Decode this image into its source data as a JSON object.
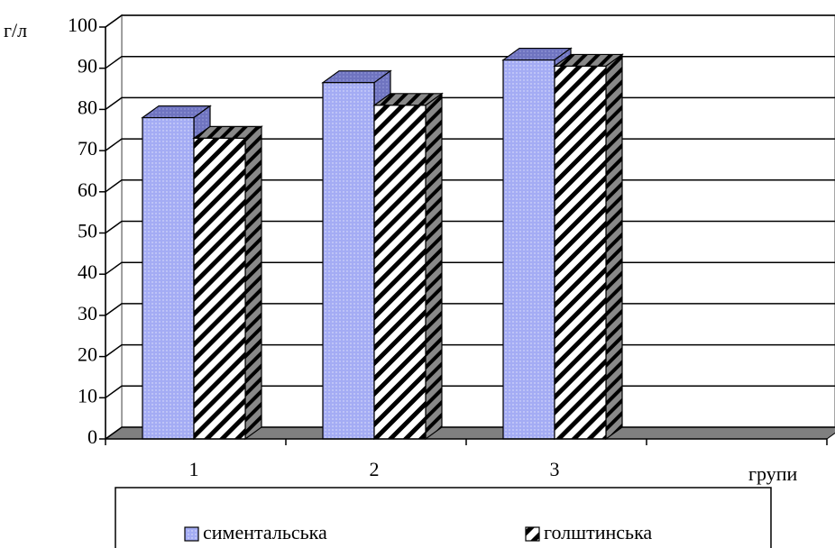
{
  "chart_data": {
    "type": "bar3d",
    "y_label": "г/л",
    "x_label": "групи",
    "categories": [
      "1",
      "2",
      "3",
      null
    ],
    "series": [
      {
        "name": "симентальська",
        "color": "#a4acf4",
        "values": [
          78,
          86.5,
          92,
          null
        ]
      },
      {
        "name": "голштинська",
        "color": "#000000",
        "values": [
          73,
          81,
          90.5,
          null
        ]
      }
    ],
    "ylim": [
      0,
      100
    ],
    "yticks": [
      0,
      10,
      20,
      30,
      40,
      50,
      60,
      70,
      80,
      90,
      100
    ],
    "grid": true
  }
}
